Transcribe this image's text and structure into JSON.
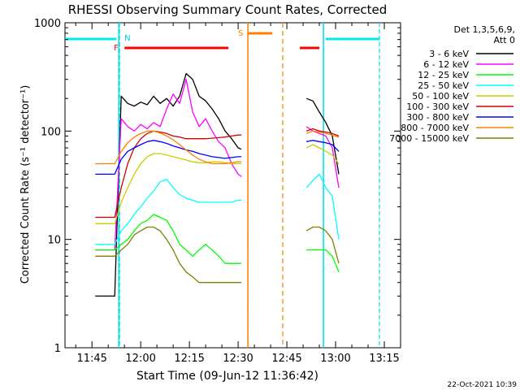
{
  "chart_data": {
    "type": "line",
    "title": "RHESSI Observing Summary Count Rates, Corrected",
    "xlabel": "Start Time (09-Jun-12 11:36:42)",
    "ylabel": "Corrected Count Rate (s⁻¹ detector⁻¹)",
    "y_scale": "log",
    "ylim": [
      1,
      1000
    ],
    "xlim": [
      "11:36:42",
      "13:20:00"
    ],
    "x_unit": "HH:MM (09-Jun-12)",
    "x_tick_labels": [
      "11:45",
      "12:00",
      "12:15",
      "12:30",
      "12:45",
      "13:00",
      "13:15"
    ],
    "y_tick_labels": [
      "1",
      "10",
      "100",
      "1000"
    ],
    "legend": {
      "position": "top-right",
      "header": [
        "Det 1,3,5,6,9,",
        "Att 0"
      ]
    },
    "footer_date": "22-Oct-2021 10:39",
    "series": [
      {
        "name": "3 - 6 keV",
        "color": "#000000",
        "x": [
          "11:46",
          "11:52",
          "11:54",
          "11:56",
          "11:58",
          "12:00",
          "12:02",
          "12:04",
          "12:06",
          "12:08",
          "12:10",
          "12:12",
          "12:14",
          "12:16",
          "12:18",
          "12:20",
          "12:22",
          "12:24",
          "12:26",
          "12:28",
          "12:30",
          "12:31",
          "12:51",
          "12:53",
          "12:55",
          "12:57",
          "12:59",
          "13:01"
        ],
        "y": [
          3,
          3,
          210,
          180,
          170,
          185,
          175,
          210,
          180,
          200,
          170,
          210,
          340,
          300,
          210,
          190,
          160,
          130,
          100,
          85,
          70,
          68,
          200,
          190,
          150,
          120,
          90,
          40
        ]
      },
      {
        "name": "6 - 12 keV",
        "color": "#ff00ff",
        "x": [
          "11:46",
          "11:52",
          "11:54",
          "11:56",
          "11:58",
          "12:00",
          "12:02",
          "12:04",
          "12:06",
          "12:08",
          "12:10",
          "12:12",
          "12:14",
          "12:16",
          "12:18",
          "12:20",
          "12:22",
          "12:24",
          "12:26",
          "12:28",
          "12:30",
          "12:31",
          "12:51",
          "12:53",
          "12:55",
          "12:57",
          "12:59",
          "13:01"
        ],
        "y": [
          8,
          8,
          130,
          110,
          100,
          115,
          105,
          120,
          110,
          160,
          220,
          180,
          300,
          150,
          110,
          130,
          100,
          80,
          70,
          50,
          40,
          38,
          110,
          100,
          95,
          90,
          70,
          30
        ]
      },
      {
        "name": "12 - 25 keV",
        "color": "#00ff00",
        "x": [
          "11:46",
          "11:52",
          "11:54",
          "11:56",
          "11:58",
          "12:00",
          "12:02",
          "12:04",
          "12:06",
          "12:08",
          "12:10",
          "12:12",
          "12:14",
          "12:16",
          "12:18",
          "12:20",
          "12:22",
          "12:24",
          "12:26",
          "12:28",
          "12:30",
          "12:31",
          "12:51",
          "12:53",
          "12:55",
          "12:57",
          "12:59",
          "13:01"
        ],
        "y": [
          8,
          8,
          9,
          10,
          12,
          14,
          15,
          17,
          16,
          15,
          12,
          9,
          8,
          7,
          8,
          9,
          8,
          7,
          6,
          6,
          6,
          6,
          8,
          8,
          8,
          8,
          7,
          5
        ]
      },
      {
        "name": "25 - 50 keV",
        "color": "#00ffff",
        "x": [
          "11:46",
          "11:52",
          "11:54",
          "11:56",
          "11:58",
          "12:00",
          "12:02",
          "12:04",
          "12:06",
          "12:08",
          "12:10",
          "12:12",
          "12:14",
          "12:16",
          "12:18",
          "12:20",
          "12:22",
          "12:24",
          "12:26",
          "12:28",
          "12:30",
          "12:31",
          "12:51",
          "12:53",
          "12:55",
          "12:57",
          "12:59",
          "13:01"
        ],
        "y": [
          9,
          9,
          12,
          14,
          17,
          20,
          24,
          28,
          34,
          36,
          30,
          26,
          24,
          23,
          22,
          22,
          22,
          22,
          22,
          22,
          23,
          23,
          30,
          35,
          40,
          30,
          25,
          10
        ]
      },
      {
        "name": "50 - 100 keV",
        "color": "#cccc00",
        "x": [
          "11:46",
          "11:52",
          "11:54",
          "11:56",
          "11:58",
          "12:00",
          "12:02",
          "12:04",
          "12:06",
          "12:08",
          "12:10",
          "12:12",
          "12:14",
          "12:16",
          "12:18",
          "12:20",
          "12:22",
          "12:24",
          "12:26",
          "12:28",
          "12:30",
          "12:31",
          "12:51",
          "12:53",
          "12:55",
          "12:57",
          "12:59",
          "13:01"
        ],
        "y": [
          14,
          14,
          22,
          30,
          40,
          50,
          58,
          62,
          62,
          60,
          58,
          56,
          54,
          52,
          51,
          51,
          52,
          52,
          51,
          50,
          50,
          50,
          70,
          75,
          70,
          65,
          60,
          50
        ]
      },
      {
        "name": "100 - 300 keV",
        "color": "#d00000",
        "x": [
          "11:46",
          "11:52",
          "11:54",
          "11:56",
          "11:58",
          "12:00",
          "12:02",
          "12:04",
          "12:06",
          "12:08",
          "12:10",
          "12:12",
          "12:14",
          "12:16",
          "12:18",
          "12:20",
          "12:22",
          "12:24",
          "12:26",
          "12:28",
          "12:30",
          "12:31",
          "12:51",
          "12:53",
          "12:55",
          "12:57",
          "12:59",
          "13:01"
        ],
        "y": [
          16,
          16,
          30,
          50,
          70,
          85,
          95,
          100,
          98,
          95,
          90,
          88,
          85,
          85,
          85,
          85,
          86,
          87,
          88,
          90,
          92,
          92,
          100,
          105,
          100,
          98,
          95,
          90
        ]
      },
      {
        "name": "300 - 800 keV",
        "color": "#0000ff",
        "x": [
          "11:46",
          "11:52",
          "11:54",
          "11:56",
          "11:58",
          "12:00",
          "12:02",
          "12:04",
          "12:06",
          "12:08",
          "12:10",
          "12:12",
          "12:14",
          "12:16",
          "12:18",
          "12:20",
          "12:22",
          "12:24",
          "12:26",
          "12:28",
          "12:30",
          "12:31",
          "12:51",
          "12:53",
          "12:55",
          "12:57",
          "12:59",
          "13:01"
        ],
        "y": [
          40,
          40,
          55,
          65,
          70,
          75,
          80,
          82,
          80,
          77,
          73,
          70,
          67,
          65,
          62,
          60,
          58,
          57,
          56,
          57,
          58,
          58,
          80,
          82,
          80,
          78,
          75,
          65
        ]
      },
      {
        "name": "800 - 7000 keV",
        "color": "#ff8000",
        "x": [
          "11:46",
          "11:52",
          "11:54",
          "11:56",
          "11:58",
          "12:00",
          "12:02",
          "12:04",
          "12:06",
          "12:08",
          "12:10",
          "12:12",
          "12:14",
          "12:16",
          "12:18",
          "12:20",
          "12:22",
          "12:24",
          "12:26",
          "12:28",
          "12:30",
          "12:31",
          "12:51",
          "12:53",
          "12:55",
          "12:57",
          "12:59",
          "13:01"
        ],
        "y": [
          50,
          50,
          65,
          78,
          88,
          95,
          100,
          100,
          96,
          90,
          83,
          75,
          67,
          60,
          55,
          52,
          50,
          50,
          50,
          51,
          52,
          52,
          95,
          100,
          98,
          95,
          92,
          88
        ]
      },
      {
        "name": "7000 - 15000 keV",
        "color": "#808000",
        "x": [
          "11:46",
          "11:52",
          "11:54",
          "11:56",
          "11:58",
          "12:00",
          "12:02",
          "12:04",
          "12:06",
          "12:08",
          "12:10",
          "12:12",
          "12:14",
          "12:16",
          "12:18",
          "12:20",
          "12:22",
          "12:24",
          "12:26",
          "12:28",
          "12:30",
          "12:31",
          "12:51",
          "12:53",
          "12:55",
          "12:57",
          "12:59",
          "13:01"
        ],
        "y": [
          7,
          7,
          8,
          9,
          11,
          12,
          13,
          13,
          12,
          10,
          8,
          6,
          5,
          4.5,
          4,
          4,
          4,
          4,
          4,
          4,
          4,
          4,
          12,
          13,
          13,
          12,
          10,
          6
        ]
      }
    ],
    "annotations": {
      "night_label": "N",
      "saa_label": "S",
      "flare_label": "F",
      "night_vlines": [
        "11:53:30",
        "12:56:15",
        "13:13:30"
      ],
      "night_bars": [
        [
          "11:36:42",
          "11:52:30"
        ],
        [
          "12:57:00",
          "13:13:30"
        ]
      ],
      "saa_vlines": [
        "12:33:00",
        "12:43:45"
      ],
      "saa_bars": [
        [
          "12:33:00",
          "12:40:30"
        ]
      ],
      "flare_bars": [
        [
          "11:55:00",
          "12:27:00"
        ],
        [
          "12:49:00",
          "12:55:00"
        ]
      ]
    }
  }
}
